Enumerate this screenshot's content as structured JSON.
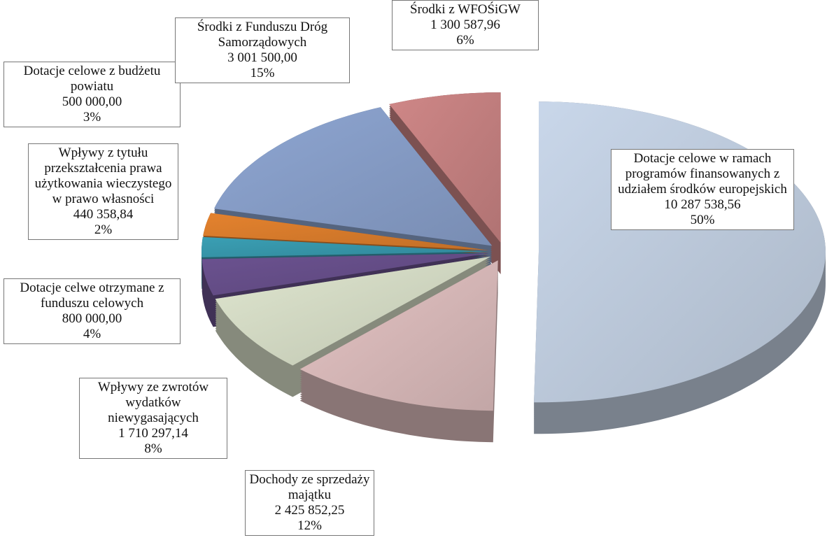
{
  "chart_data": {
    "type": "pie3d",
    "categories": [
      "Dotacje celowe w ramach programów finansowanych z udziałem środków europejskich",
      "Dochody ze sprzedaży majątku",
      "Wpływy ze zwrotów wydatków niewygasających",
      "Dotacje celwe otrzymane z funduszu celowych",
      "Wpływy z tytułu przekształcenia prawa użytkowania wieczystego w prawo własności",
      "Dotacje celowe z budżetu powiatu",
      "Środki z Funduszu Dróg Samorządowych",
      "Środki z WFOŚiGW"
    ],
    "values": [
      10287538.56,
      2425852.25,
      1710297.14,
      800000,
      440358.84,
      500000,
      3001500,
      1300587.96
    ],
    "value_labels": [
      "10 287 538,56",
      "2 425 852,25",
      "1 710 297,14",
      "800 000,00",
      "440 358,84",
      "500 000,00",
      "3 001 500,00",
      "1 300 587,96"
    ],
    "percents": [
      50,
      12,
      8,
      4,
      2,
      3,
      15,
      6
    ],
    "percent_labels": [
      "50%",
      "12%",
      "8%",
      "4%",
      "2%",
      "3%",
      "15%",
      "6%"
    ],
    "colors": [
      "#c9d7ea",
      "#e4c3c3",
      "#dfe6cf",
      "#6b5290",
      "#3a9fb4",
      "#e4822e",
      "#8ea6d2",
      "#cf8787"
    ]
  }
}
